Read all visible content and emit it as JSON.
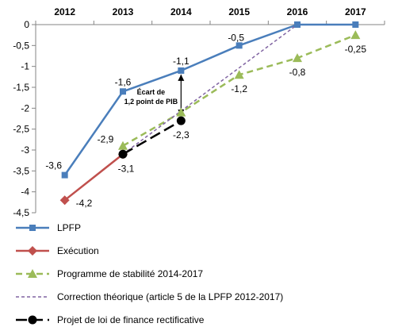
{
  "chart_data": {
    "type": "line",
    "title": "",
    "xlabel": "",
    "ylabel": "",
    "x": [
      2012,
      2013,
      2014,
      2015,
      2016,
      2017
    ],
    "x_tick_labels": [
      "2012",
      "2013",
      "2014",
      "2015",
      "2016",
      "2017"
    ],
    "ylim": [
      -4.5,
      0
    ],
    "y_ticks": [
      0,
      -0.5,
      -1,
      -1.5,
      -2,
      -2.5,
      -3,
      -3.5,
      -4,
      -4.5
    ],
    "y_tick_labels": [
      "0",
      "-0,5",
      "-1",
      "-1,5",
      "-2",
      "-2,5",
      "-3",
      "-3,5",
      "-4",
      "-4,5"
    ],
    "x_axis_position": "top",
    "grid": false,
    "legend_position": "bottom",
    "series": [
      {
        "name": "LPFP",
        "color": "#4a7ebb",
        "style": "solid",
        "marker": "square",
        "points": [
          [
            2012,
            -3.6
          ],
          [
            2013,
            -1.6
          ],
          [
            2014,
            -1.1
          ],
          [
            2015,
            -0.5
          ],
          [
            2016,
            0
          ],
          [
            2017,
            0
          ]
        ],
        "labels": [
          "-3,6",
          "-1,6",
          "-1,1",
          "-0,5",
          "",
          ""
        ]
      },
      {
        "name": "Exécution",
        "color": "#c0504d",
        "style": "solid",
        "marker": "diamond",
        "points": [
          [
            2012,
            -4.2
          ],
          [
            2013,
            -3.1
          ]
        ],
        "labels": [
          "-4,2",
          ""
        ]
      },
      {
        "name": "Programme de stabilité 2014-2017",
        "color": "#9bbb59",
        "style": "dashed",
        "marker": "triangle",
        "points": [
          [
            2013,
            -2.9
          ],
          [
            2014,
            -2.1
          ],
          [
            2015,
            -1.2
          ],
          [
            2016,
            -0.8
          ],
          [
            2017,
            -0.25
          ]
        ],
        "labels": [
          "-2,9",
          "",
          "-1,2",
          "-0,8",
          "-0,25"
        ]
      },
      {
        "name": "Correction théorique (article 5 de la LPFP 2012-2017)",
        "color": "#8064a2",
        "style": "dashed-thin",
        "marker": "none",
        "points": [
          [
            2013,
            -3.1
          ],
          [
            2016,
            0
          ]
        ],
        "labels": [
          "",
          ""
        ]
      },
      {
        "name": "Projet de loi de finance rectificative",
        "color": "#000000",
        "style": "long-dash",
        "marker": "circle",
        "points": [
          [
            2013,
            -3.1
          ],
          [
            2014,
            -2.3
          ]
        ],
        "labels": [
          "-3,1",
          "-2,3"
        ]
      }
    ],
    "annotations": [
      {
        "text_lines": [
          "Écart de",
          "1,2 point de PIB"
        ],
        "type": "double-arrow",
        "x": 2014,
        "from": -1.1,
        "to": -2.3
      }
    ]
  }
}
